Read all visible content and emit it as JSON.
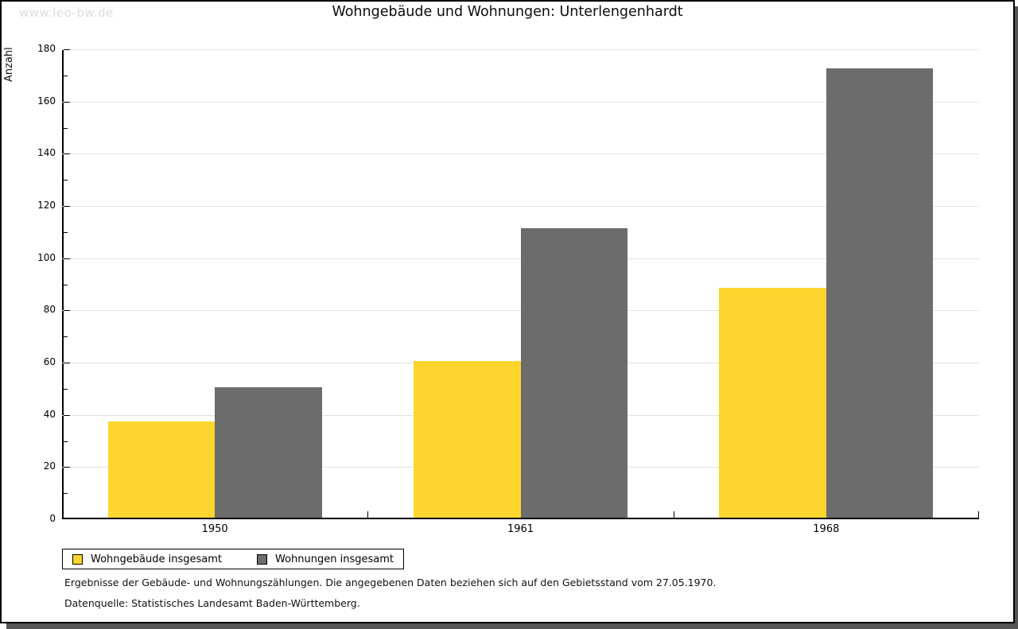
{
  "page": {
    "watermark": "www.leo-bw.de",
    "title": "Wohngebäude und Wohnungen: Unterlengenhardt"
  },
  "chart_data": {
    "type": "bar",
    "title": "Wohngebäude und Wohnungen: Unterlengenhardt",
    "xlabel": "",
    "ylabel": "Anzahl",
    "categories": [
      "1950",
      "1961",
      "1968"
    ],
    "series": [
      {
        "name": "Wohngebäude insgesamt",
        "color": "#fcd62e",
        "values": [
          37,
          60,
          88
        ]
      },
      {
        "name": "Wohnungen insgesamt",
        "color": "#6c6c6c",
        "values": [
          50,
          111,
          172
        ]
      }
    ],
    "ylim": [
      0,
      180
    ],
    "ytick_step": 20,
    "yminor_step": 10,
    "grid": "horizontal-major-gridlines",
    "legend_position": "bottom-left",
    "bar_colors": {
      "yellow": "#fcd62e",
      "gray": "#6c6c6c"
    },
    "gridline_color": "#e2e2e2"
  },
  "footer": {
    "line1": "Ergebnisse der Gebäude- und Wohnungszählungen. Die angegebenen Daten beziehen sich auf den Gebietsstand vom 27.05.1970.",
    "line2": "Datenquelle: Statistisches Landesamt Baden-Württemberg."
  }
}
